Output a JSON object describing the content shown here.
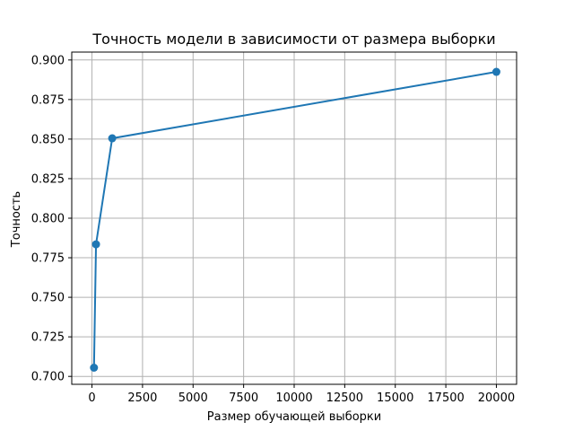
{
  "chart_data": {
    "type": "line",
    "title": "Точность модели в зависимости от размера выборки",
    "xlabel": "Размер обучающей выборки",
    "ylabel": "Точность",
    "xlim": [
      -1000,
      21000
    ],
    "ylim": [
      0.695,
      0.905
    ],
    "grid": true,
    "x_ticks": [
      0,
      2500,
      5000,
      7500,
      10000,
      12500,
      15000,
      17500,
      20000
    ],
    "y_ticks": [
      0.7,
      0.725,
      0.75,
      0.775,
      0.8,
      0.825,
      0.85,
      0.875,
      0.9
    ],
    "x_tick_labels": [
      "0",
      "2500",
      "5000",
      "7500",
      "10000",
      "12500",
      "15000",
      "17500",
      "20000"
    ],
    "y_tick_labels": [
      "0.700",
      "0.725",
      "0.750",
      "0.775",
      "0.800",
      "0.825",
      "0.850",
      "0.875",
      "0.900"
    ],
    "series": [
      {
        "color": "#1f77b4",
        "marker": "circle",
        "x": [
          100,
          200,
          1000,
          20000
        ],
        "y": [
          0.7055,
          0.7835,
          0.8505,
          0.8925
        ]
      }
    ]
  }
}
